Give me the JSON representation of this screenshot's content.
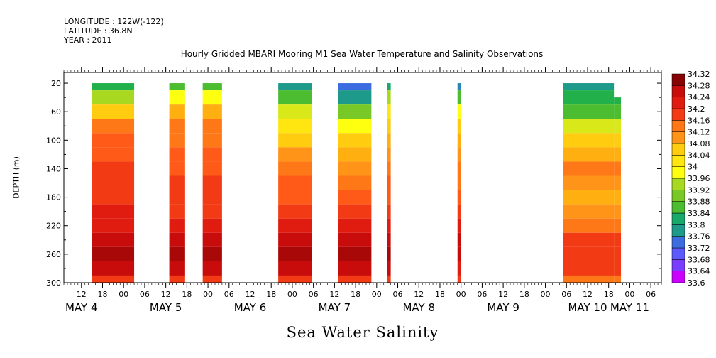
{
  "header": {
    "longitude": "LONGITUDE : 122W(-122)",
    "latitude": "LATITUDE : 36.8N",
    "year": "YEAR : 2011"
  },
  "colors": {
    "palette": [
      "#cc00ff",
      "#a020f0",
      "#7a3cff",
      "#5a5aff",
      "#3c6ce0",
      "#2a86b8",
      "#1e9a8a",
      "#18a86a",
      "#22b04a",
      "#4cbc30",
      "#78c828",
      "#a8d820",
      "#d8e818",
      "#ffff10",
      "#ffe610",
      "#ffcc10",
      "#ffb010",
      "#ff9418",
      "#ff7818",
      "#ff5a18",
      "#f23a14",
      "#e01c10",
      "#c80c0c",
      "#a80808",
      "#880404"
    ]
  },
  "chart_data": {
    "type": "heatmap",
    "title": "Hourly Gridded MBARI Mooring M1 Sea Water Temperature and Salinity Observations",
    "xlabel": "Sea Water Salinity",
    "ylabel": "DEPTH (m)",
    "x_unit": "hours",
    "xlim": [
      7,
      84
    ],
    "ylim": [
      300,
      20
    ],
    "ymin_plot": 5,
    "y_ticks": [
      20,
      60,
      100,
      140,
      180,
      220,
      260,
      300
    ],
    "hour_ticks": [
      12,
      18,
      0,
      6,
      12,
      18,
      0,
      6,
      12,
      18,
      0,
      6,
      12,
      18,
      0,
      6,
      12,
      18,
      0,
      6,
      12,
      18,
      0,
      6,
      12,
      18,
      0,
      6
    ],
    "hour_tick_positions": [
      12,
      18,
      24,
      30,
      36,
      42,
      48,
      54,
      60,
      66,
      72,
      78,
      84,
      90,
      96,
      102,
      108,
      114,
      120,
      126,
      132,
      138,
      144,
      150,
      156,
      162,
      168,
      174
    ],
    "day_labels": [
      {
        "month": "MAY",
        "day": "4",
        "at": 12
      },
      {
        "month": "MAY",
        "day": "5",
        "at": 36
      },
      {
        "month": "MAY",
        "day": "6",
        "at": 60
      },
      {
        "month": "MAY",
        "day": "7",
        "at": 84
      },
      {
        "month": "MAY",
        "day": "8",
        "at": 108
      },
      {
        "month": "MAY",
        "day": "9",
        "at": 132
      },
      {
        "month": "MAY",
        "day": "10",
        "at": 156
      },
      {
        "month": "MAY",
        "day": "11",
        "at": 168
      }
    ],
    "x_range": [
      7,
      177
    ],
    "colorbar": {
      "levels": [
        "33.6",
        "33.64",
        "33.68",
        "33.72",
        "33.76",
        "33.8",
        "33.84",
        "33.88",
        "33.92",
        "33.96",
        "34",
        "34.04",
        "34.08",
        "34.12",
        "34.16",
        "34.2",
        "34.24",
        "34.28",
        "34.32"
      ],
      "min": 33.6,
      "max": 34.32
    },
    "segments": [
      {
        "start": 15,
        "end": 27,
        "depths": [
          20,
          40,
          60,
          80,
          100,
          120,
          140,
          160,
          180,
          200,
          220,
          240,
          260,
          280,
          300
        ],
        "values": [
          33.84,
          33.94,
          34.06,
          34.12,
          34.15,
          34.17,
          34.18,
          34.19,
          34.2,
          34.21,
          34.23,
          34.26,
          34.27,
          34.24,
          34.2
        ]
      },
      {
        "start": 37,
        "end": 41.5,
        "depths": [
          20,
          40,
          60,
          80,
          100,
          120,
          140,
          160,
          180,
          200,
          220,
          240,
          260,
          280,
          300
        ],
        "values": [
          33.86,
          34.0,
          34.08,
          34.12,
          34.14,
          34.16,
          34.17,
          34.18,
          34.19,
          34.2,
          34.22,
          34.25,
          34.27,
          34.24,
          34.2
        ]
      },
      {
        "start": 46.5,
        "end": 52,
        "depths": [
          20,
          40,
          60,
          80,
          100,
          120,
          140,
          160,
          180,
          200,
          220,
          240,
          260,
          280,
          300
        ],
        "values": [
          33.86,
          34.0,
          34.08,
          34.12,
          34.14,
          34.16,
          34.17,
          34.18,
          34.19,
          34.2,
          34.22,
          34.25,
          34.28,
          34.25,
          34.2
        ]
      },
      {
        "start": 68,
        "end": 77.5,
        "depths": [
          20,
          40,
          60,
          80,
          100,
          120,
          140,
          160,
          180,
          200,
          220,
          240,
          260,
          280,
          300
        ],
        "values": [
          33.78,
          33.86,
          33.96,
          34.02,
          34.06,
          34.1,
          34.13,
          34.15,
          34.17,
          34.19,
          34.22,
          34.25,
          34.27,
          34.24,
          34.2
        ]
      },
      {
        "start": 85,
        "end": 94.5,
        "depths": [
          20,
          40,
          60,
          80,
          100,
          120,
          140,
          160,
          180,
          200,
          220,
          240,
          260,
          280,
          300
        ],
        "values": [
          33.74,
          33.78,
          33.9,
          33.98,
          34.04,
          34.08,
          34.1,
          34.13,
          34.16,
          34.19,
          34.22,
          34.25,
          34.27,
          34.24,
          34.2
        ]
      },
      {
        "start": 99,
        "end": 100,
        "depths": [
          20,
          40,
          60,
          80,
          100,
          120,
          140,
          160,
          180,
          200,
          220,
          240,
          260,
          280,
          300
        ],
        "values": [
          33.82,
          33.92,
          34.02,
          34.06,
          34.08,
          34.1,
          34.13,
          34.15,
          34.17,
          34.2,
          34.23,
          34.26,
          34.28,
          34.25,
          34.2
        ]
      },
      {
        "start": 119,
        "end": 120,
        "depths": [
          20,
          40,
          60,
          80,
          100,
          120,
          140,
          160,
          180,
          200,
          220,
          240,
          260,
          280,
          300
        ],
        "values": [
          33.76,
          33.86,
          33.98,
          34.04,
          34.08,
          34.1,
          34.12,
          34.14,
          34.16,
          34.19,
          34.22,
          34.24,
          34.26,
          34.23,
          34.2
        ]
      },
      {
        "start": 149,
        "end": 163.5,
        "depths": [
          20,
          40,
          60,
          80,
          100,
          120,
          140,
          160,
          180,
          200,
          220,
          240,
          260,
          280,
          300
        ],
        "values": [
          33.8,
          33.84,
          33.88,
          33.96,
          34.04,
          34.08,
          34.12,
          34.1,
          34.08,
          34.1,
          34.14,
          34.18,
          34.2,
          34.18,
          34.14
        ]
      },
      {
        "start": 163.5,
        "end": 165.5,
        "depths": [
          40,
          60,
          80,
          100,
          120,
          140,
          160,
          180,
          200,
          220,
          240,
          260,
          280,
          300
        ],
        "values": [
          33.84,
          33.88,
          33.96,
          34.04,
          34.08,
          34.12,
          34.1,
          34.08,
          34.1,
          34.14,
          34.18,
          34.2,
          34.18,
          34.14
        ]
      }
    ]
  }
}
